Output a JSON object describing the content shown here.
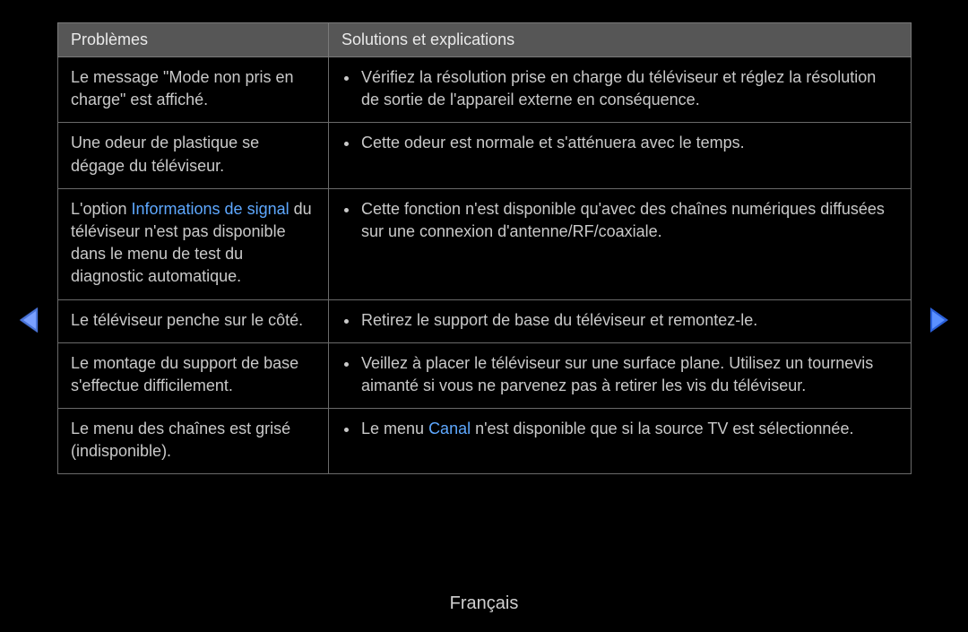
{
  "colors": {
    "background": "#000000",
    "header_bg": "#565656",
    "text": "#c9c9c9",
    "highlight": "#5ea8ff",
    "border": "#6a6a6a",
    "arrow_left": "#4a74d8",
    "arrow_right": "#2a5fd8"
  },
  "table": {
    "headers": {
      "problems": "Problèmes",
      "solutions": "Solutions et explications"
    },
    "rows": [
      {
        "problem_parts": [
          {
            "text": "Le message \"Mode non pris en charge\" est affiché.",
            "highlight": false
          }
        ],
        "solutions": [
          {
            "parts": [
              {
                "text": "Vérifiez la résolution prise en charge du téléviseur et réglez la résolution de sortie de l'appareil externe en conséquence.",
                "highlight": false
              }
            ]
          }
        ]
      },
      {
        "problem_parts": [
          {
            "text": "Une odeur de plastique se dégage du téléviseur.",
            "highlight": false
          }
        ],
        "solutions": [
          {
            "parts": [
              {
                "text": "Cette odeur est normale et s'atténuera avec le temps.",
                "highlight": false
              }
            ]
          }
        ]
      },
      {
        "problem_parts": [
          {
            "text": "L'option ",
            "highlight": false
          },
          {
            "text": "Informations de signal",
            "highlight": true
          },
          {
            "text": " du téléviseur n'est pas disponible dans le menu de test du diagnostic automatique.",
            "highlight": false
          }
        ],
        "solutions": [
          {
            "parts": [
              {
                "text": "Cette fonction n'est disponible qu'avec des chaînes numériques diffusées sur une connexion d'antenne/RF/coaxiale.",
                "highlight": false
              }
            ]
          }
        ]
      },
      {
        "problem_parts": [
          {
            "text": "Le téléviseur penche sur le côté.",
            "highlight": false
          }
        ],
        "solutions": [
          {
            "parts": [
              {
                "text": "Retirez le support de base du téléviseur et remontez-le.",
                "highlight": false
              }
            ]
          }
        ]
      },
      {
        "problem_parts": [
          {
            "text": "Le montage du support de base s'effectue difficilement.",
            "highlight": false
          }
        ],
        "solutions": [
          {
            "parts": [
              {
                "text": "Veillez à placer le téléviseur sur une surface plane. Utilisez un tournevis aimanté si vous ne parvenez pas à retirer les vis du téléviseur.",
                "highlight": false
              }
            ]
          }
        ]
      },
      {
        "problem_parts": [
          {
            "text": "Le menu des chaînes est grisé (indisponible).",
            "highlight": false
          }
        ],
        "solutions": [
          {
            "parts": [
              {
                "text": "Le menu ",
                "highlight": false
              },
              {
                "text": "Canal",
                "highlight": true
              },
              {
                "text": " n'est disponible que si la source TV est sélectionnée.",
                "highlight": false
              }
            ]
          }
        ]
      }
    ]
  },
  "footer": {
    "language": "Français"
  }
}
